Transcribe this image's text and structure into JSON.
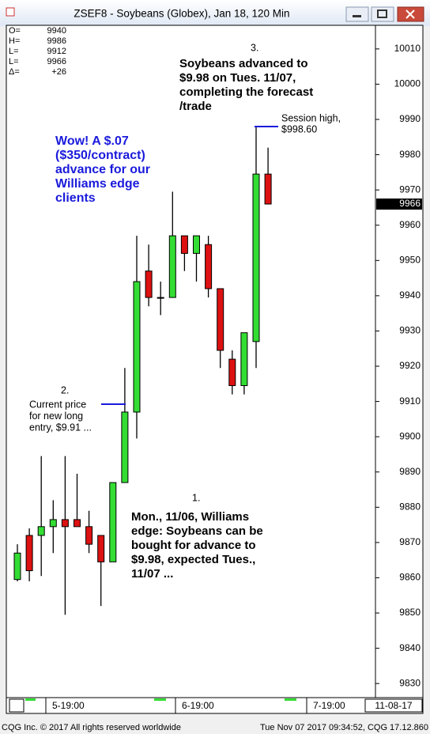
{
  "window_title": "ZSEF8 - Soybeans (Globex), Jan 18, 120 Min",
  "ohlc_box": {
    "labels": [
      "O=",
      "H=",
      "L=",
      "L=",
      "Δ="
    ],
    "values": [
      "9940",
      "9986",
      "9912",
      "9966",
      "+26"
    ]
  },
  "chart_data": {
    "type": "candlestick",
    "up_color": "#33dd33",
    "down_color": "#dd1111",
    "series": {
      "open": [
        9859.5,
        9872,
        9872,
        9874.5,
        9876.5,
        9876.5,
        9874.5,
        9872,
        9864.5,
        9887,
        9907,
        9947,
        9939.5,
        9939.5,
        9957,
        9952,
        9954.5,
        9942,
        9922,
        9914.5,
        9927,
        9974.5
      ],
      "high": [
        9869.5,
        9874,
        9894.5,
        9882,
        9894.5,
        9889.5,
        9879,
        9872,
        9887,
        9919.5,
        9957,
        9954.5,
        9944,
        9969.5,
        9957,
        9957,
        9957,
        9942,
        9924.5,
        9929.5,
        9988,
        9982
      ],
      "low": [
        9859,
        9859,
        9860.5,
        9867,
        9849.5,
        9874.5,
        9867,
        9852,
        9864.5,
        9887,
        9899.5,
        9937,
        9934.5,
        9939.5,
        9947,
        9944,
        9939.5,
        9919.5,
        9912,
        9912,
        9919.5,
        9966
      ],
      "close": [
        9867,
        9862,
        9874.5,
        9876.5,
        9874.5,
        9874.5,
        9869.5,
        9864.5,
        9887,
        9907,
        9944,
        9939.5,
        9939.5,
        9957,
        9952,
        9957,
        9942,
        9924.5,
        9914.5,
        9929.5,
        9974.5,
        9966
      ]
    },
    "ylim": [
      9826,
      10016.7
    ],
    "yticks": [
      10010,
      10000,
      9990,
      9980,
      9970,
      9960,
      9950,
      9940,
      9930,
      9920,
      9910,
      9900,
      9890,
      9880,
      9870,
      9860,
      9850,
      9840,
      9830
    ],
    "x_labels": [
      "5-19:00",
      "6-19:00",
      "7-19:00"
    ],
    "date_label": "11-08-17",
    "annotations": [
      {
        "number": "3.",
        "lines": [
          "Soybeans advanced to",
          "$9.98 on Tues. 11/07,",
          "completing the forecast",
          "/trade"
        ]
      },
      {
        "lines": [
          "Session high,",
          "$998.60"
        ]
      },
      {
        "lines": [
          "Wow!  A $.07",
          "($350/contract)",
          "advance for our",
          "Williams edge",
          "clients"
        ]
      },
      {
        "number": "2.",
        "lines": [
          "Current price",
          "for new long",
          "entry, $9.91 ..."
        ]
      },
      {
        "number": "1.",
        "lines": [
          "Mon., 11/06, Williams",
          "edge: Soybeans can be",
          "bought for advance to",
          "$9.98, expected Tues.,",
          "11/07 ..."
        ]
      }
    ]
  },
  "footer": {
    "left": "CQG Inc. © 2017 All rights reserved worldwide",
    "right": "Tue Nov 07 2017 09:34:52, CQG 17.12.860"
  }
}
